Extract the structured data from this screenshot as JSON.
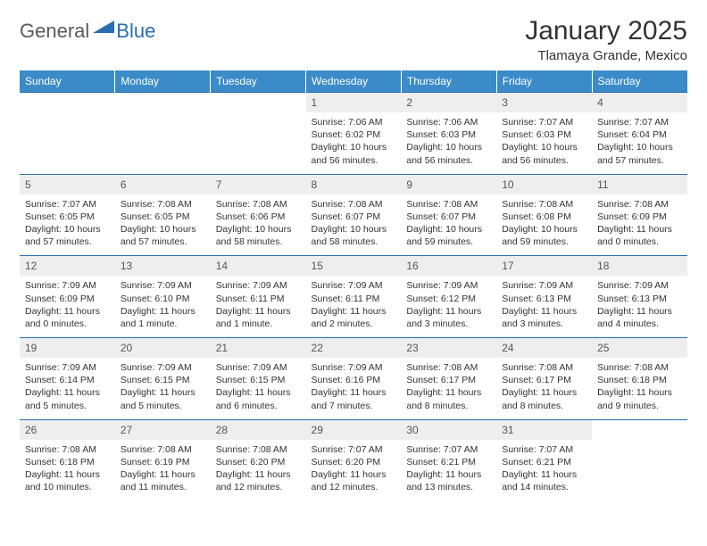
{
  "logo": {
    "part1": "General",
    "part2": "Blue"
  },
  "title": "January 2025",
  "location": "Tlamaya Grande, Mexico",
  "colors": {
    "header_bg": "#3b8bc9",
    "header_text": "#ffffff",
    "daynum_bg": "#eeeeee",
    "border": "#2a6db0",
    "body_text": "#333333"
  },
  "day_names": [
    "Sunday",
    "Monday",
    "Tuesday",
    "Wednesday",
    "Thursday",
    "Friday",
    "Saturday"
  ],
  "weeks": [
    [
      null,
      null,
      null,
      {
        "n": "1",
        "sr": "Sunrise: 7:06 AM",
        "ss": "Sunset: 6:02 PM",
        "dl": "Daylight: 10 hours and 56 minutes."
      },
      {
        "n": "2",
        "sr": "Sunrise: 7:06 AM",
        "ss": "Sunset: 6:03 PM",
        "dl": "Daylight: 10 hours and 56 minutes."
      },
      {
        "n": "3",
        "sr": "Sunrise: 7:07 AM",
        "ss": "Sunset: 6:03 PM",
        "dl": "Daylight: 10 hours and 56 minutes."
      },
      {
        "n": "4",
        "sr": "Sunrise: 7:07 AM",
        "ss": "Sunset: 6:04 PM",
        "dl": "Daylight: 10 hours and 57 minutes."
      }
    ],
    [
      {
        "n": "5",
        "sr": "Sunrise: 7:07 AM",
        "ss": "Sunset: 6:05 PM",
        "dl": "Daylight: 10 hours and 57 minutes."
      },
      {
        "n": "6",
        "sr": "Sunrise: 7:08 AM",
        "ss": "Sunset: 6:05 PM",
        "dl": "Daylight: 10 hours and 57 minutes."
      },
      {
        "n": "7",
        "sr": "Sunrise: 7:08 AM",
        "ss": "Sunset: 6:06 PM",
        "dl": "Daylight: 10 hours and 58 minutes."
      },
      {
        "n": "8",
        "sr": "Sunrise: 7:08 AM",
        "ss": "Sunset: 6:07 PM",
        "dl": "Daylight: 10 hours and 58 minutes."
      },
      {
        "n": "9",
        "sr": "Sunrise: 7:08 AM",
        "ss": "Sunset: 6:07 PM",
        "dl": "Daylight: 10 hours and 59 minutes."
      },
      {
        "n": "10",
        "sr": "Sunrise: 7:08 AM",
        "ss": "Sunset: 6:08 PM",
        "dl": "Daylight: 10 hours and 59 minutes."
      },
      {
        "n": "11",
        "sr": "Sunrise: 7:08 AM",
        "ss": "Sunset: 6:09 PM",
        "dl": "Daylight: 11 hours and 0 minutes."
      }
    ],
    [
      {
        "n": "12",
        "sr": "Sunrise: 7:09 AM",
        "ss": "Sunset: 6:09 PM",
        "dl": "Daylight: 11 hours and 0 minutes."
      },
      {
        "n": "13",
        "sr": "Sunrise: 7:09 AM",
        "ss": "Sunset: 6:10 PM",
        "dl": "Daylight: 11 hours and 1 minute."
      },
      {
        "n": "14",
        "sr": "Sunrise: 7:09 AM",
        "ss": "Sunset: 6:11 PM",
        "dl": "Daylight: 11 hours and 1 minute."
      },
      {
        "n": "15",
        "sr": "Sunrise: 7:09 AM",
        "ss": "Sunset: 6:11 PM",
        "dl": "Daylight: 11 hours and 2 minutes."
      },
      {
        "n": "16",
        "sr": "Sunrise: 7:09 AM",
        "ss": "Sunset: 6:12 PM",
        "dl": "Daylight: 11 hours and 3 minutes."
      },
      {
        "n": "17",
        "sr": "Sunrise: 7:09 AM",
        "ss": "Sunset: 6:13 PM",
        "dl": "Daylight: 11 hours and 3 minutes."
      },
      {
        "n": "18",
        "sr": "Sunrise: 7:09 AM",
        "ss": "Sunset: 6:13 PM",
        "dl": "Daylight: 11 hours and 4 minutes."
      }
    ],
    [
      {
        "n": "19",
        "sr": "Sunrise: 7:09 AM",
        "ss": "Sunset: 6:14 PM",
        "dl": "Daylight: 11 hours and 5 minutes."
      },
      {
        "n": "20",
        "sr": "Sunrise: 7:09 AM",
        "ss": "Sunset: 6:15 PM",
        "dl": "Daylight: 11 hours and 5 minutes."
      },
      {
        "n": "21",
        "sr": "Sunrise: 7:09 AM",
        "ss": "Sunset: 6:15 PM",
        "dl": "Daylight: 11 hours and 6 minutes."
      },
      {
        "n": "22",
        "sr": "Sunrise: 7:09 AM",
        "ss": "Sunset: 6:16 PM",
        "dl": "Daylight: 11 hours and 7 minutes."
      },
      {
        "n": "23",
        "sr": "Sunrise: 7:08 AM",
        "ss": "Sunset: 6:17 PM",
        "dl": "Daylight: 11 hours and 8 minutes."
      },
      {
        "n": "24",
        "sr": "Sunrise: 7:08 AM",
        "ss": "Sunset: 6:17 PM",
        "dl": "Daylight: 11 hours and 8 minutes."
      },
      {
        "n": "25",
        "sr": "Sunrise: 7:08 AM",
        "ss": "Sunset: 6:18 PM",
        "dl": "Daylight: 11 hours and 9 minutes."
      }
    ],
    [
      {
        "n": "26",
        "sr": "Sunrise: 7:08 AM",
        "ss": "Sunset: 6:18 PM",
        "dl": "Daylight: 11 hours and 10 minutes."
      },
      {
        "n": "27",
        "sr": "Sunrise: 7:08 AM",
        "ss": "Sunset: 6:19 PM",
        "dl": "Daylight: 11 hours and 11 minutes."
      },
      {
        "n": "28",
        "sr": "Sunrise: 7:08 AM",
        "ss": "Sunset: 6:20 PM",
        "dl": "Daylight: 11 hours and 12 minutes."
      },
      {
        "n": "29",
        "sr": "Sunrise: 7:07 AM",
        "ss": "Sunset: 6:20 PM",
        "dl": "Daylight: 11 hours and 12 minutes."
      },
      {
        "n": "30",
        "sr": "Sunrise: 7:07 AM",
        "ss": "Sunset: 6:21 PM",
        "dl": "Daylight: 11 hours and 13 minutes."
      },
      {
        "n": "31",
        "sr": "Sunrise: 7:07 AM",
        "ss": "Sunset: 6:21 PM",
        "dl": "Daylight: 11 hours and 14 minutes."
      },
      null
    ]
  ]
}
